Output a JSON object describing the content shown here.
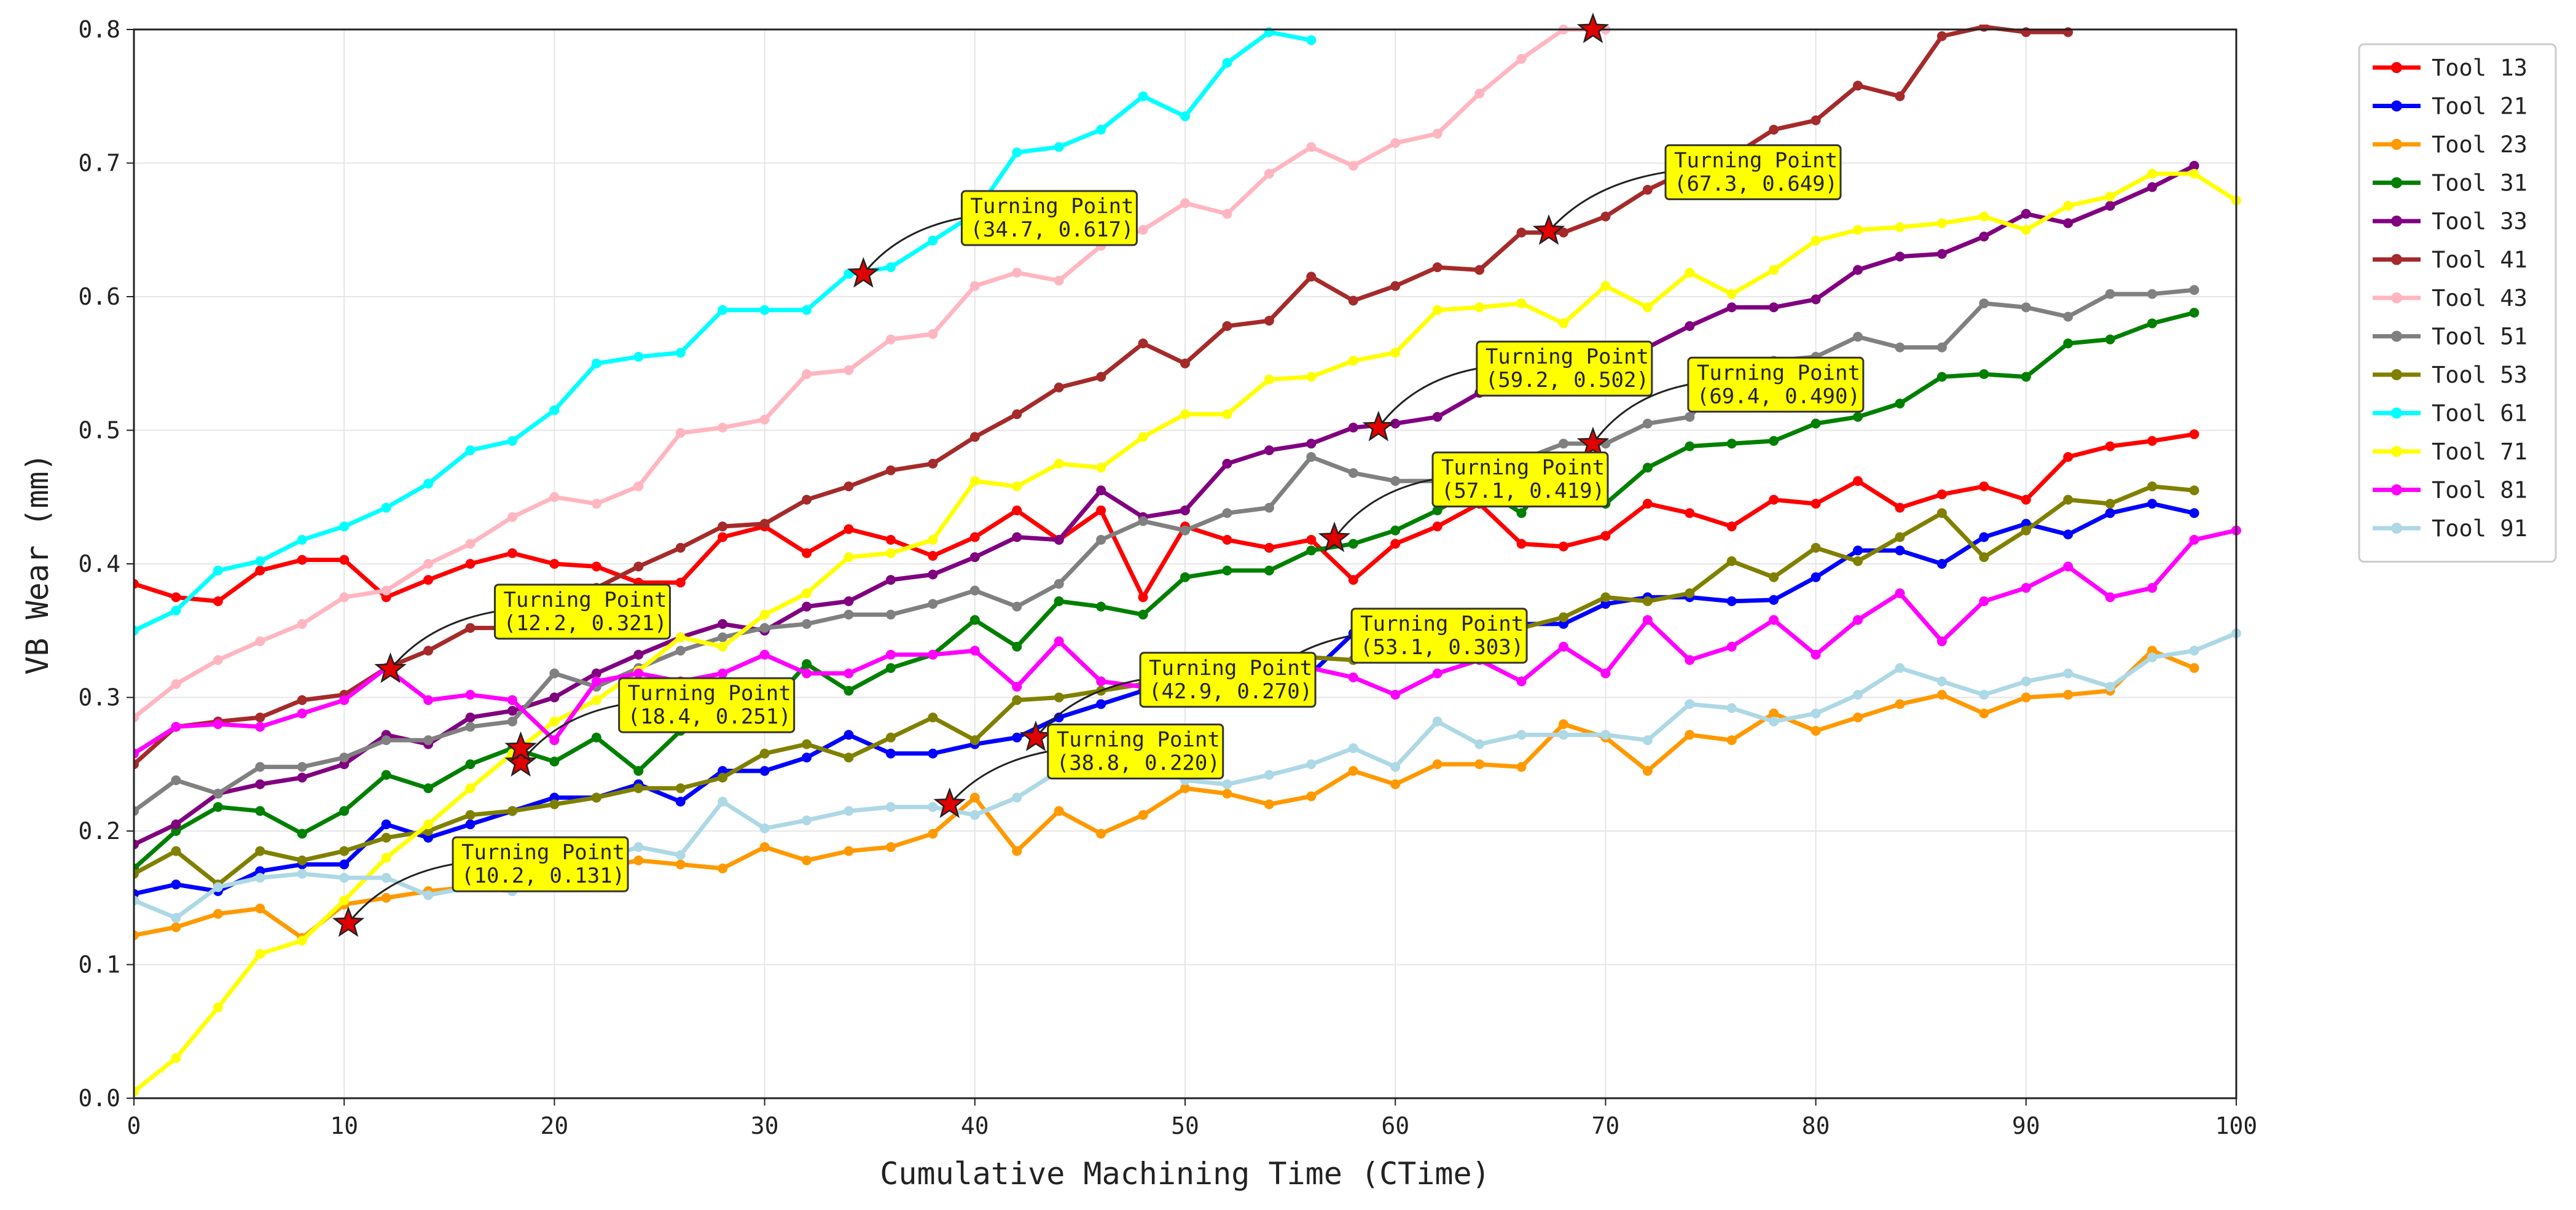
{
  "chart_data": {
    "type": "line",
    "xlabel": "Cumulative Machining Time (CTime)",
    "ylabel": "VB Wear (mm)",
    "xlim": [
      0,
      100
    ],
    "ylim": [
      0,
      0.8
    ],
    "xticks": [
      0,
      10,
      20,
      30,
      40,
      50,
      60,
      70,
      80,
      90,
      100
    ],
    "yticks": [
      0.0,
      0.1,
      0.2,
      0.3,
      0.4,
      0.5,
      0.6,
      0.7,
      0.8
    ],
    "grid": true,
    "legend_position": "outside-right",
    "x": [
      0,
      2,
      4,
      6,
      8,
      10,
      12,
      14,
      16,
      18,
      20,
      22,
      24,
      26,
      28,
      30,
      32,
      34,
      36,
      38,
      40,
      42,
      44,
      46,
      48,
      50,
      52,
      54,
      56,
      58,
      60,
      62,
      64,
      66,
      68,
      70,
      72,
      74,
      76,
      78,
      80,
      82,
      84,
      86,
      88,
      90,
      92,
      94,
      96,
      98,
      100
    ],
    "series": [
      {
        "name": "Tool 13",
        "color": "#ff0000",
        "values": [
          0.385,
          0.375,
          0.372,
          0.395,
          0.403,
          0.403,
          0.375,
          0.388,
          0.4,
          0.408,
          0.4,
          0.398,
          0.386,
          0.386,
          0.42,
          0.428,
          0.408,
          0.426,
          0.418,
          0.406,
          0.42,
          0.44,
          0.418,
          0.44,
          0.375,
          0.428,
          0.418,
          0.412,
          0.418,
          0.388,
          0.415,
          0.428,
          0.445,
          0.415,
          0.413,
          0.421,
          0.445,
          0.438,
          0.428,
          0.448,
          0.445,
          0.462,
          0.442,
          0.452,
          0.458,
          0.448,
          0.48,
          0.488,
          0.492,
          0.497,
          null
        ]
      },
      {
        "name": "Tool 21",
        "color": "#0000ff",
        "values": [
          0.153,
          0.16,
          0.155,
          0.17,
          0.175,
          0.175,
          0.205,
          0.195,
          0.205,
          0.215,
          0.225,
          0.225,
          0.235,
          0.222,
          0.245,
          0.245,
          0.255,
          0.272,
          0.258,
          0.258,
          0.265,
          0.27,
          0.285,
          0.295,
          0.305,
          0.305,
          0.312,
          0.325,
          0.318,
          0.348,
          0.342,
          0.332,
          0.335,
          0.355,
          0.355,
          0.37,
          0.375,
          0.375,
          0.372,
          0.373,
          0.39,
          0.41,
          0.41,
          0.4,
          0.42,
          0.43,
          0.422,
          0.438,
          0.445,
          0.438,
          null
        ]
      },
      {
        "name": "Tool 23",
        "color": "#ff9900",
        "values": [
          0.122,
          0.128,
          0.138,
          0.142,
          0.12,
          0.145,
          0.15,
          0.155,
          0.158,
          0.16,
          0.165,
          0.172,
          0.178,
          0.175,
          0.172,
          0.188,
          0.178,
          0.185,
          0.188,
          0.198,
          0.225,
          0.185,
          0.215,
          0.198,
          0.212,
          0.232,
          0.228,
          0.22,
          0.226,
          0.245,
          0.235,
          0.25,
          0.25,
          0.248,
          0.28,
          0.27,
          0.245,
          0.272,
          0.268,
          0.288,
          0.275,
          0.285,
          0.295,
          0.302,
          0.288,
          0.3,
          0.302,
          0.305,
          0.335,
          0.322,
          null
        ]
      },
      {
        "name": "Tool 31",
        "color": "#008000",
        "values": [
          0.172,
          0.2,
          0.218,
          0.215,
          0.198,
          0.215,
          0.242,
          0.232,
          0.25,
          0.262,
          0.252,
          0.27,
          0.245,
          0.275,
          0.293,
          0.29,
          0.325,
          0.305,
          0.322,
          0.332,
          0.358,
          0.338,
          0.372,
          0.368,
          0.362,
          0.39,
          0.395,
          0.395,
          0.41,
          0.415,
          0.425,
          0.44,
          0.458,
          0.438,
          0.478,
          0.445,
          0.472,
          0.488,
          0.49,
          0.492,
          0.505,
          0.51,
          0.52,
          0.54,
          0.542,
          0.54,
          0.565,
          0.568,
          0.58,
          0.588,
          null
        ]
      },
      {
        "name": "Tool 33",
        "color": "#800080",
        "values": [
          0.19,
          0.205,
          0.228,
          0.235,
          0.24,
          0.25,
          0.272,
          0.265,
          0.285,
          0.29,
          0.3,
          0.318,
          0.332,
          0.345,
          0.355,
          0.35,
          0.368,
          0.372,
          0.388,
          0.392,
          0.405,
          0.42,
          0.418,
          0.455,
          0.435,
          0.44,
          0.475,
          0.485,
          0.49,
          0.502,
          0.505,
          0.51,
          0.528,
          0.53,
          0.548,
          0.552,
          0.562,
          0.578,
          0.592,
          0.592,
          0.598,
          0.62,
          0.63,
          0.632,
          0.645,
          0.662,
          0.655,
          0.668,
          0.682,
          0.698,
          null
        ]
      },
      {
        "name": "Tool 41",
        "color": "#a52a2a",
        "values": [
          0.25,
          0.278,
          0.282,
          0.285,
          0.298,
          0.302,
          0.322,
          0.335,
          0.352,
          0.352,
          0.372,
          0.382,
          0.398,
          0.412,
          0.428,
          0.43,
          0.448,
          0.458,
          0.47,
          0.475,
          0.495,
          0.512,
          0.532,
          0.54,
          0.565,
          0.55,
          0.578,
          0.582,
          0.615,
          0.597,
          0.608,
          0.622,
          0.62,
          0.648,
          0.648,
          0.66,
          0.68,
          0.695,
          0.705,
          0.725,
          0.732,
          0.758,
          0.75,
          0.795,
          0.802,
          0.798,
          0.798,
          null,
          null,
          null,
          null
        ]
      },
      {
        "name": "Tool 43",
        "color": "#ffb6c1",
        "values": [
          0.285,
          0.31,
          0.328,
          0.342,
          0.355,
          0.375,
          0.38,
          0.4,
          0.415,
          0.435,
          0.45,
          0.445,
          0.458,
          0.498,
          0.502,
          0.508,
          0.542,
          0.545,
          0.568,
          0.572,
          0.608,
          0.618,
          0.612,
          0.638,
          0.65,
          0.67,
          0.662,
          0.692,
          0.712,
          0.698,
          0.715,
          0.722,
          0.752,
          0.778,
          0.8,
          0.8,
          null,
          null,
          null,
          null,
          null,
          null,
          null,
          null,
          null,
          null,
          null,
          null,
          null,
          null,
          null
        ]
      },
      {
        "name": "Tool 51",
        "color": "#808080",
        "values": [
          0.215,
          0.238,
          0.228,
          0.248,
          0.248,
          0.255,
          0.268,
          0.268,
          0.278,
          0.282,
          0.318,
          0.308,
          0.322,
          0.335,
          0.345,
          0.352,
          0.355,
          0.362,
          0.362,
          0.37,
          0.38,
          0.368,
          0.385,
          0.418,
          0.432,
          0.425,
          0.438,
          0.442,
          0.48,
          0.468,
          0.462,
          0.462,
          0.475,
          0.478,
          0.49,
          0.49,
          0.505,
          0.51,
          0.545,
          0.552,
          0.555,
          0.57,
          0.562,
          0.562,
          0.595,
          0.592,
          0.585,
          0.602,
          0.602,
          0.605,
          null
        ]
      },
      {
        "name": "Tool 53",
        "color": "#808000",
        "values": [
          0.168,
          0.185,
          0.16,
          0.185,
          0.178,
          0.185,
          0.195,
          0.2,
          0.212,
          0.215,
          0.22,
          0.225,
          0.232,
          0.232,
          0.24,
          0.258,
          0.265,
          0.255,
          0.27,
          0.285,
          0.268,
          0.298,
          0.3,
          0.305,
          0.31,
          0.318,
          0.322,
          0.325,
          0.33,
          0.328,
          0.348,
          0.34,
          0.355,
          0.352,
          0.36,
          0.375,
          0.372,
          0.378,
          0.402,
          0.39,
          0.412,
          0.402,
          0.42,
          0.438,
          0.405,
          0.425,
          0.448,
          0.445,
          0.458,
          0.455,
          null
        ]
      },
      {
        "name": "Tool 61",
        "color": "#00ffff",
        "values": [
          0.35,
          0.365,
          0.395,
          0.402,
          0.418,
          0.428,
          0.442,
          0.46,
          0.485,
          0.492,
          0.515,
          0.55,
          0.555,
          0.558,
          0.59,
          0.59,
          0.59,
          0.617,
          0.622,
          0.642,
          0.662,
          0.708,
          0.712,
          0.725,
          0.75,
          0.735,
          0.775,
          0.798,
          0.792,
          null,
          null,
          null,
          null,
          null,
          null,
          null,
          null,
          null,
          null,
          null,
          null,
          null,
          null,
          null,
          null,
          null,
          null,
          null,
          null,
          null,
          null
        ]
      },
      {
        "name": "Tool 71",
        "color": "#ffff00",
        "values": [
          0.005,
          0.03,
          0.068,
          0.108,
          0.118,
          0.148,
          0.18,
          0.205,
          0.232,
          0.258,
          0.282,
          0.298,
          0.32,
          0.345,
          0.338,
          0.362,
          0.378,
          0.405,
          0.408,
          0.418,
          0.462,
          0.458,
          0.475,
          0.472,
          0.495,
          0.512,
          0.512,
          0.538,
          0.54,
          0.552,
          0.558,
          0.59,
          0.592,
          0.595,
          0.58,
          0.608,
          0.592,
          0.618,
          0.602,
          0.62,
          0.642,
          0.65,
          0.652,
          0.655,
          0.66,
          0.65,
          0.668,
          0.675,
          0.692,
          0.692,
          0.672
        ]
      },
      {
        "name": "Tool 81",
        "color": "#ff00ff",
        "values": [
          0.258,
          0.278,
          0.28,
          0.278,
          0.288,
          0.298,
          0.322,
          0.298,
          0.302,
          0.298,
          0.268,
          0.312,
          0.318,
          0.312,
          0.318,
          0.332,
          0.318,
          0.318,
          0.332,
          0.332,
          0.335,
          0.308,
          0.342,
          0.312,
          0.308,
          0.328,
          0.312,
          0.312,
          0.322,
          0.315,
          0.302,
          0.318,
          0.328,
          0.312,
          0.338,
          0.318,
          0.358,
          0.328,
          0.338,
          0.358,
          0.332,
          0.358,
          0.378,
          0.342,
          0.372,
          0.382,
          0.398,
          0.375,
          0.382,
          0.418,
          0.425
        ]
      },
      {
        "name": "Tool 91",
        "color": "#add8e6",
        "values": [
          0.148,
          0.135,
          0.158,
          0.165,
          0.168,
          0.165,
          0.165,
          0.152,
          0.158,
          0.155,
          0.182,
          0.178,
          0.188,
          0.182,
          0.222,
          0.202,
          0.208,
          0.215,
          0.218,
          0.218,
          0.212,
          0.225,
          0.245,
          0.248,
          0.252,
          0.238,
          0.235,
          0.242,
          0.25,
          0.262,
          0.248,
          0.282,
          0.265,
          0.272,
          0.272,
          0.272,
          0.268,
          0.295,
          0.292,
          0.282,
          0.288,
          0.302,
          0.322,
          0.312,
          0.302,
          0.312,
          0.318,
          0.308,
          0.33,
          0.335,
          0.348
        ]
      }
    ],
    "annotations": [
      {
        "label": "Turning Point",
        "coords": "(34.7, 0.617)",
        "x": 34.7,
        "y": 0.617
      },
      {
        "label": "Turning Point",
        "coords": "(67.3, 0.649)",
        "x": 67.3,
        "y": 0.649
      },
      {
        "label": "Turning Point",
        "coords": "(59.2, 0.502)",
        "x": 59.2,
        "y": 0.502
      },
      {
        "label": "Turning Point",
        "coords": "(69.4, 0.490)",
        "x": 69.4,
        "y": 0.49
      },
      {
        "label": "Turning Point",
        "coords": "(57.1, 0.419)",
        "x": 57.1,
        "y": 0.419
      },
      {
        "label": "Turning Point",
        "coords": "(12.2, 0.321)",
        "x": 12.2,
        "y": 0.321
      },
      {
        "label": "Turning Point",
        "coords": "(18.4, 0.251)",
        "x": 18.4,
        "y": 0.251
      },
      {
        "label": "Turning Point",
        "coords": "(53.1, 0.303)",
        "x": 53.1,
        "y": 0.303
      },
      {
        "label": "Turning Point",
        "coords": "(42.9, 0.270)",
        "x": 42.9,
        "y": 0.27
      },
      {
        "label": "Turning Point",
        "coords": "(38.8, 0.220)",
        "x": 38.8,
        "y": 0.22
      },
      {
        "label": "Turning Point",
        "coords": "(10.2, 0.131)",
        "x": 10.2,
        "y": 0.131
      }
    ],
    "marker_points": [
      {
        "x": 18.4,
        "y": 0.262
      },
      {
        "x": 69.4,
        "y": 0.8
      }
    ],
    "colors": {
      "annotation_fill": "#ffff00",
      "annotation_border": "#333333",
      "star_fill": "#e00000",
      "grid": "#e6e6e6"
    }
  }
}
